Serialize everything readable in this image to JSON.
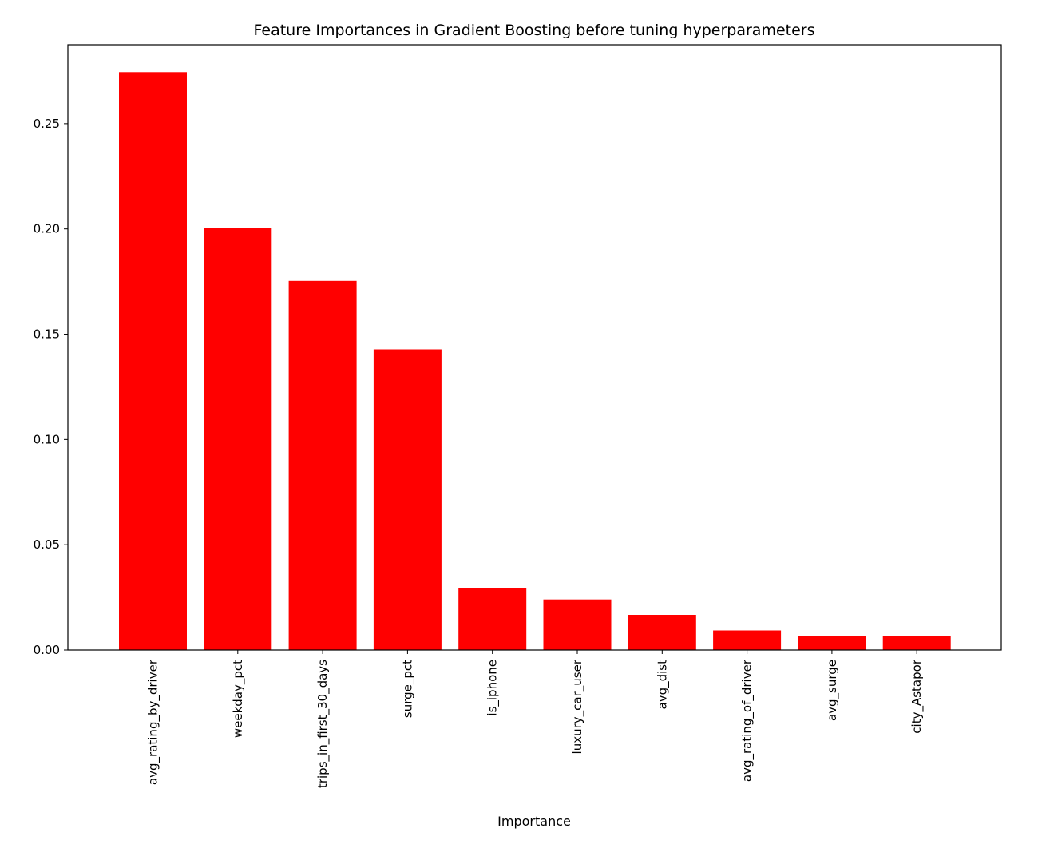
{
  "chart_data": {
    "type": "bar",
    "title": "Feature Importances in Gradient Boosting before tuning hyperparameters",
    "xlabel": "Importance",
    "ylabel": "",
    "categories": [
      "avg_rating_by_driver",
      "weekday_pct",
      "trips_in_first_30_days",
      "surge_pct",
      "is_iphone",
      "luxury_car_user",
      "avg_dist",
      "avg_rating_of_driver",
      "avg_surge",
      "city_Astapor"
    ],
    "values": [
      0.2745,
      0.2005,
      0.1753,
      0.1428,
      0.0294,
      0.024,
      0.0167,
      0.0093,
      0.0066,
      0.0066
    ],
    "ylim": [
      0,
      0.2875
    ],
    "yticks": [
      0.0,
      0.05,
      0.1,
      0.15,
      0.2,
      0.25
    ],
    "ytick_labels": [
      "0.00",
      "0.05",
      "0.10",
      "0.15",
      "0.20",
      "0.25"
    ],
    "bar_color": "#ff0000",
    "grid": false,
    "legend": "none"
  }
}
